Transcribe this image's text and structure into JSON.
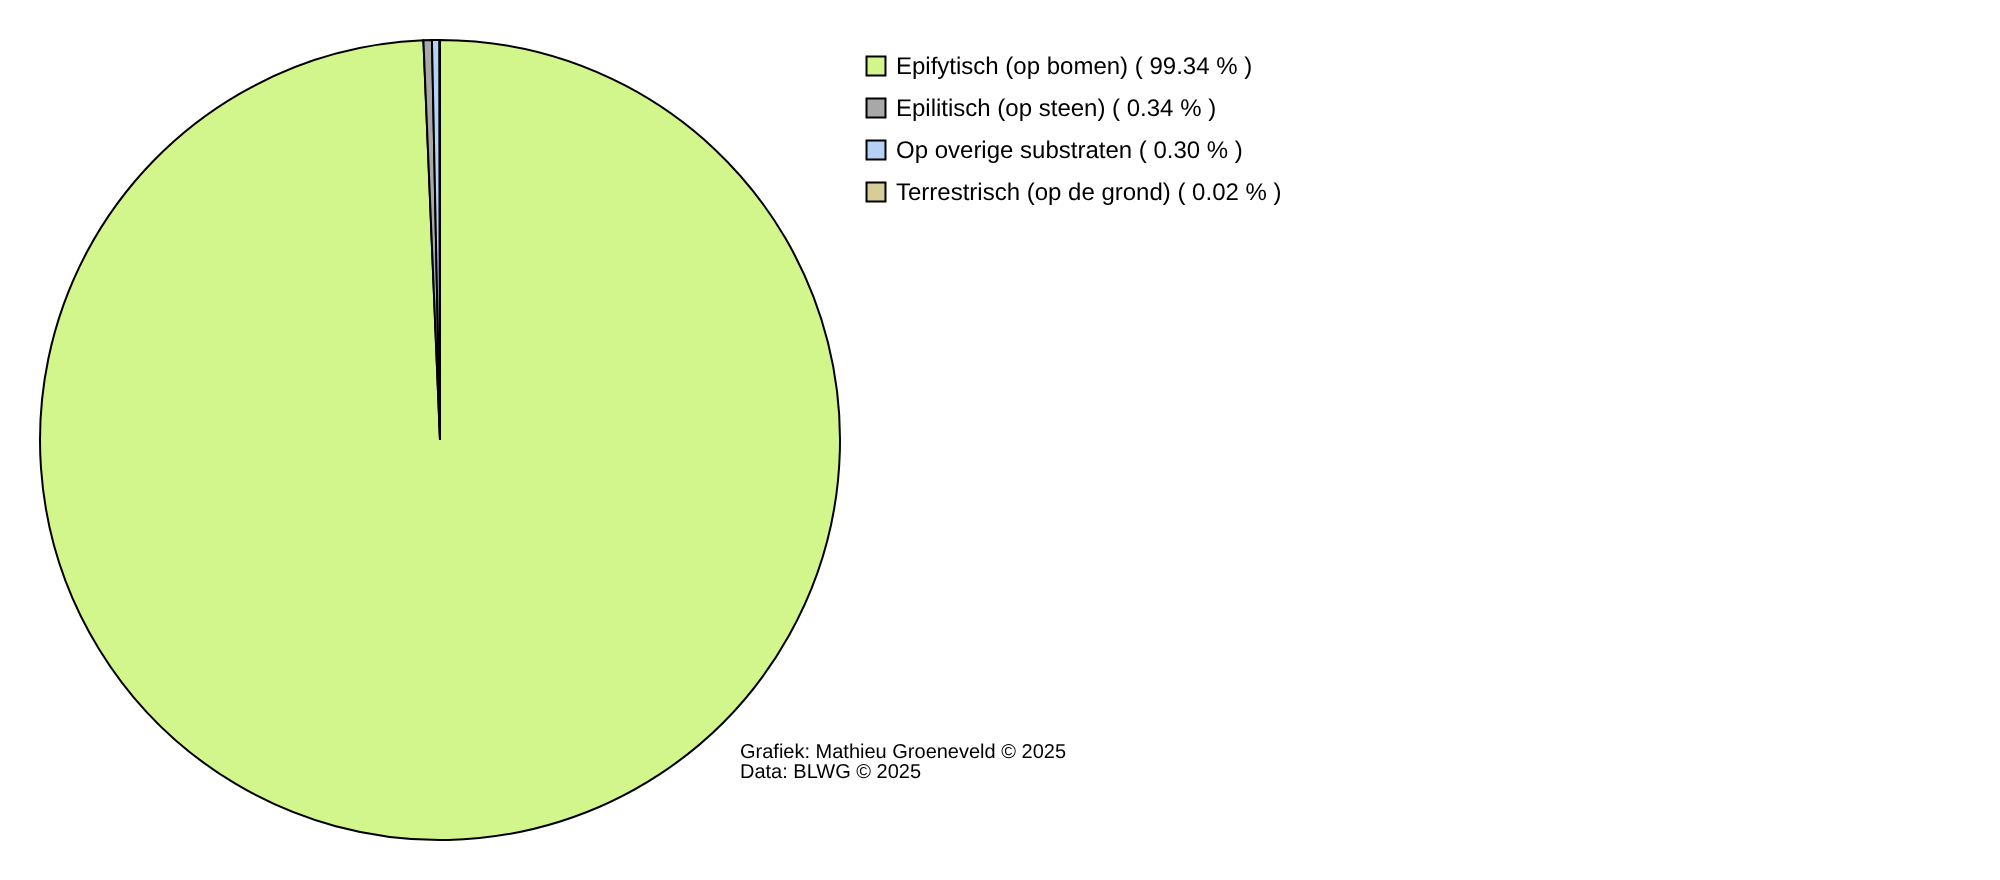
{
  "chart_data": {
    "type": "pie",
    "categories": [
      "Epifytisch (op bomen) ( 99.34 % )",
      "Epilitisch (op steen) ( 0.34 % )",
      "Op overige substraten ( 0.30 % )",
      "Terrestrisch (op de grond) ( 0.02 % )"
    ],
    "values": [
      99.34,
      0.34,
      0.3,
      0.02
    ],
    "colors": [
      "#d2f58c",
      "#a8a8a8",
      "#b4d2f5",
      "#d7cd96"
    ],
    "legend": "top right",
    "annotations": [
      "Grafiek: Mathieu Groeneveld © 2025",
      "Data: BLWG © 2025"
    ]
  }
}
